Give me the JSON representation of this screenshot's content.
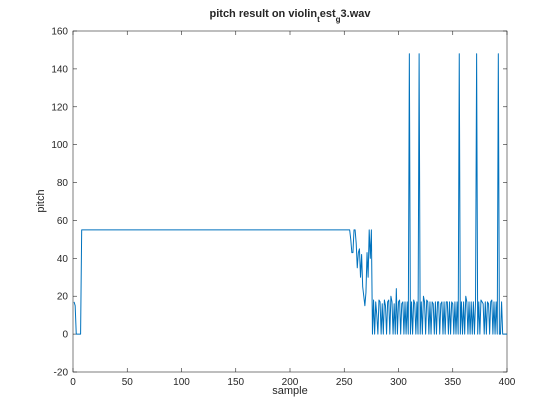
{
  "chart_data": {
    "type": "line",
    "title_parts": [
      {
        "text": "pitch result on violin"
      },
      {
        "text": "t",
        "sub": true
      },
      {
        "text": "est"
      },
      {
        "text": "g",
        "sub": true
      },
      {
        "text": "3.wav"
      }
    ],
    "xlabel": "sample",
    "ylabel": "pitch",
    "xlim": [
      0,
      400
    ],
    "xticks": [
      0,
      50,
      100,
      150,
      200,
      250,
      300,
      350,
      400
    ],
    "ylim": [
      -20,
      160
    ],
    "yticks": [
      -20,
      0,
      20,
      40,
      60,
      80,
      100,
      120,
      140,
      160
    ],
    "series": [
      {
        "color": "#0072bd",
        "x": [
          1,
          2,
          3,
          7,
          8,
          255,
          256,
          257,
          258,
          259,
          260,
          261,
          262,
          263,
          264,
          265,
          266,
          267,
          268,
          269,
          270,
          271,
          272,
          273,
          274,
          275,
          276,
          277,
          278,
          279,
          280,
          281,
          282,
          283,
          284,
          285,
          286,
          287,
          288,
          289,
          290,
          291,
          292,
          293,
          294,
          295,
          296,
          297,
          298,
          299,
          300,
          301,
          302,
          303,
          304,
          305,
          306,
          307,
          308,
          309,
          310,
          311,
          312,
          313,
          314,
          315,
          316,
          317,
          318,
          319,
          320,
          321,
          322,
          323,
          324,
          325,
          326,
          327,
          328,
          329,
          330,
          331,
          332,
          333,
          334,
          335,
          336,
          337,
          338,
          339,
          340,
          341,
          342,
          343,
          344,
          345,
          346,
          347,
          348,
          349,
          350,
          351,
          352,
          353,
          354,
          355,
          356,
          357,
          358,
          359,
          360,
          361,
          362,
          363,
          364,
          365,
          366,
          367,
          368,
          369,
          370,
          371,
          372,
          373,
          374,
          375,
          376,
          377,
          378,
          379,
          380,
          381,
          382,
          383,
          384,
          385,
          386,
          387,
          388,
          389,
          390,
          391,
          392,
          393,
          394,
          395,
          396,
          400
        ],
        "values": [
          17,
          15,
          0,
          0,
          55,
          55,
          50,
          43,
          43,
          55,
          55,
          48,
          35,
          43,
          45,
          30,
          42,
          25,
          20,
          15,
          22,
          43,
          30,
          55,
          40,
          55,
          0,
          18,
          0,
          17,
          10,
          0,
          18,
          17,
          0,
          16,
          0,
          18,
          15,
          0,
          17,
          18,
          0,
          20,
          17,
          0,
          16,
          0,
          24,
          0,
          17,
          18,
          0,
          16,
          17,
          0,
          17,
          0,
          17,
          0,
          148,
          0,
          17,
          0,
          18,
          16,
          0,
          17,
          0,
          148,
          0,
          17,
          0,
          20,
          17,
          0,
          18,
          17,
          0,
          17,
          0,
          17,
          16,
          0,
          17,
          0,
          17,
          17,
          0,
          16,
          17,
          0,
          17,
          0,
          17,
          17,
          0,
          17,
          0,
          17,
          16,
          0,
          17,
          0,
          17,
          0,
          148,
          0,
          17,
          0,
          17,
          0,
          20,
          17,
          0,
          17,
          0,
          17,
          0,
          17,
          0,
          17,
          148,
          0,
          17,
          0,
          18,
          17,
          16,
          0,
          17,
          0,
          17,
          16,
          0,
          17,
          18,
          0,
          17,
          0,
          17,
          0,
          148,
          0,
          0,
          17,
          0,
          0
        ]
      }
    ]
  }
}
